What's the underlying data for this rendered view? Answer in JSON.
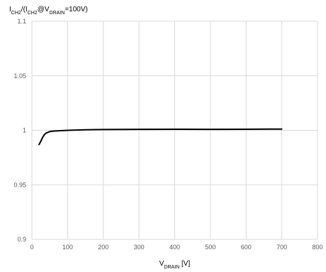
{
  "chart_data": {
    "type": "line",
    "title": "",
    "ylabel": {
      "parts": [
        {
          "text": "I",
          "sub": false
        },
        {
          "text": "CH2",
          "sub": true
        },
        {
          "text": "/(I",
          "sub": false
        },
        {
          "text": "CH2",
          "sub": true
        },
        {
          "text": "@V",
          "sub": false
        },
        {
          "text": "DRAIN",
          "sub": true
        },
        {
          "text": "=100V)",
          "sub": false
        }
      ]
    },
    "xlabel": {
      "parts": [
        {
          "text": "V",
          "sub": false
        },
        {
          "text": "DRAIN",
          "sub": true
        },
        {
          "text": " [V]",
          "sub": false
        }
      ]
    },
    "xlim": [
      0,
      800
    ],
    "ylim": [
      0.9,
      1.1
    ],
    "x_ticks": [
      0,
      100,
      200,
      300,
      400,
      500,
      600,
      700,
      800
    ],
    "x_tick_labels": [
      "0",
      "100",
      "200",
      "300",
      "400",
      "500",
      "600",
      "700",
      "800"
    ],
    "y_ticks": [
      0.9,
      0.95,
      1.0,
      1.05,
      1.1
    ],
    "y_tick_labels": [
      "0.9",
      "0.95",
      "1",
      "1.05",
      "1.1"
    ],
    "grid": true,
    "line_color": "#000000",
    "grid_color": "#d9d9d9",
    "series": [
      {
        "x": [
          20,
          25,
          30,
          35,
          40,
          50,
          60,
          80,
          100,
          150,
          200,
          300,
          400,
          500,
          600,
          700
        ],
        "y": [
          0.987,
          0.99,
          0.9935,
          0.996,
          0.9975,
          0.9988,
          0.9993,
          0.9997,
          1.0,
          1.0005,
          1.0007,
          1.0009,
          1.001,
          1.0009,
          1.001,
          1.0012
        ]
      }
    ]
  }
}
